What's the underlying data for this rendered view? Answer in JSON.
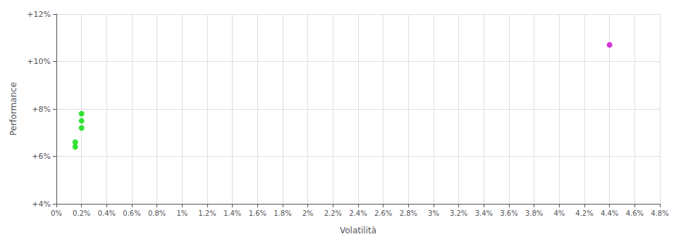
{
  "chart_data": {
    "type": "scatter",
    "xlabel": "Volatilità",
    "ylabel": "Performance",
    "xlim": [
      0.0,
      0.048
    ],
    "ylim": [
      0.04,
      0.12
    ],
    "xticks": [
      {
        "value": 0.0,
        "label": "0%"
      },
      {
        "value": 0.002,
        "label": "0.2%"
      },
      {
        "value": 0.004,
        "label": "0.4%"
      },
      {
        "value": 0.006,
        "label": "0.6%"
      },
      {
        "value": 0.008,
        "label": "0.8%"
      },
      {
        "value": 0.01,
        "label": "1%"
      },
      {
        "value": 0.012,
        "label": "1.2%"
      },
      {
        "value": 0.014,
        "label": "1.4%"
      },
      {
        "value": 0.016,
        "label": "1.6%"
      },
      {
        "value": 0.018,
        "label": "1.8%"
      },
      {
        "value": 0.02,
        "label": "2%"
      },
      {
        "value": 0.022,
        "label": "2.2%"
      },
      {
        "value": 0.024,
        "label": "2.4%"
      },
      {
        "value": 0.026,
        "label": "2.6%"
      },
      {
        "value": 0.028,
        "label": "2.8%"
      },
      {
        "value": 0.03,
        "label": "3%"
      },
      {
        "value": 0.032,
        "label": "3.2%"
      },
      {
        "value": 0.034,
        "label": "3.4%"
      },
      {
        "value": 0.036,
        "label": "3.6%"
      },
      {
        "value": 0.038,
        "label": "3.8%"
      },
      {
        "value": 0.04,
        "label": "4%"
      },
      {
        "value": 0.042,
        "label": "4.2%"
      },
      {
        "value": 0.044,
        "label": "4.4%"
      },
      {
        "value": 0.046,
        "label": "4.6%"
      },
      {
        "value": 0.048,
        "label": "4.8%"
      }
    ],
    "yticks": [
      {
        "value": 0.04,
        "label": "+4%"
      },
      {
        "value": 0.06,
        "label": "+6%"
      },
      {
        "value": 0.08,
        "label": "+8%"
      },
      {
        "value": 0.1,
        "label": "+10%"
      },
      {
        "value": 0.12,
        "label": "+12%"
      }
    ],
    "grid": true,
    "series": [
      {
        "color": "#00dd00",
        "x": [
          0.002,
          0.002,
          0.002,
          0.0015,
          0.0015
        ],
        "values": [
          0.078,
          0.075,
          0.072,
          0.066,
          0.064
        ]
      },
      {
        "color": "#cc00cc",
        "x": [
          0.044
        ],
        "values": [
          0.107
        ]
      }
    ]
  }
}
